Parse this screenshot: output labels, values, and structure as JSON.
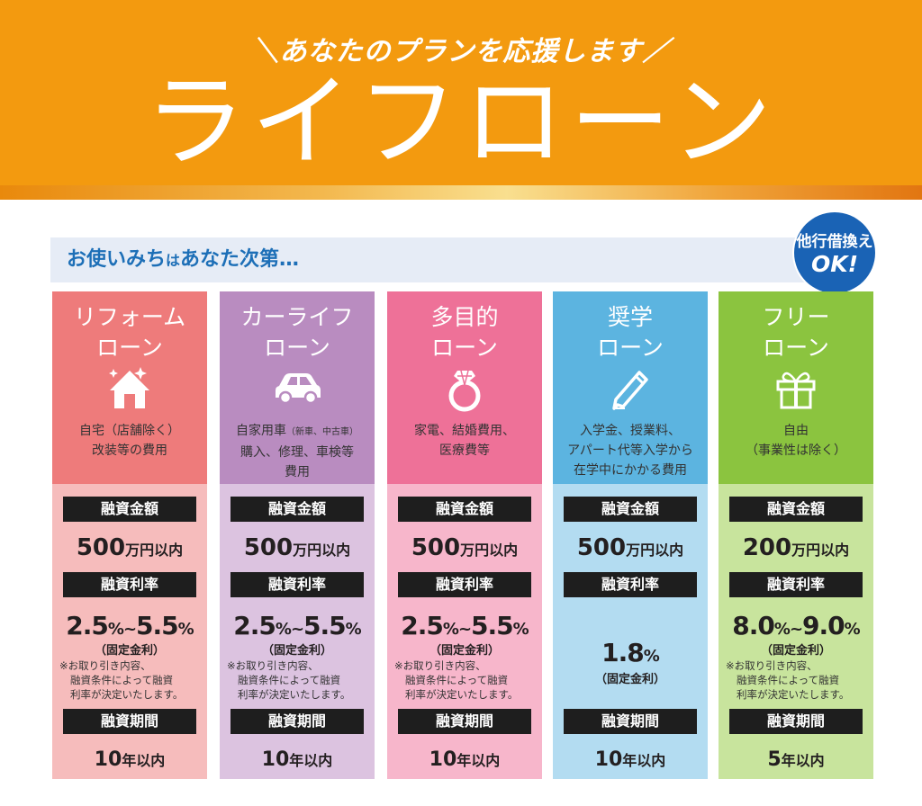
{
  "header": {
    "subtitle": "＼あなたのプランを応援します／",
    "title": "ライフローン"
  },
  "usage": {
    "text_part1": "お使いみち",
    "text_small": "は",
    "text_part2": "あなた次第…"
  },
  "badge": {
    "line1": "他行借換え",
    "line2": "OK!"
  },
  "labels": {
    "amount": "融資金額",
    "rate": "融資利率",
    "term": "融資期間"
  },
  "colors": {
    "header_orange": "#f39a0f",
    "reform": "#ee7b7b",
    "reform_light": "#f6bcbc",
    "carlife": "#b98cc0",
    "carlife_light": "#dcc3e0",
    "multi": "#ee7198",
    "multi_light": "#f7b6cb",
    "scholar": "#5cb4e0",
    "scholar_light": "#b3dcf1",
    "free": "#8bc43f",
    "free_light": "#c8e49d",
    "badge_blue": "#1a63b5"
  },
  "loans": [
    {
      "name1": "リフォーム",
      "name2": "ローン",
      "icon": "house-icon",
      "desc1": "自宅（店舗除く）",
      "desc2": "改装等の費用",
      "desc3": "",
      "amount": "500",
      "amount_unit": "万円以内",
      "rate_from": "2.5",
      "rate_to": "5.5",
      "rate_unit": "%",
      "rate_sep": "~",
      "rate_type": "（固定金利）",
      "note1": "※お取り引き内容、",
      "note2": "融資条件によって融資",
      "note3": "利率が決定いたします。",
      "term": "10",
      "term_unit": "年以内"
    },
    {
      "name1": "カーライフ",
      "name2": "ローン",
      "icon": "car-icon",
      "desc1": "自家用車",
      "desc1_small": "（新車、中古車）",
      "desc2": "購入、修理、車検等",
      "desc3": "費用",
      "amount": "500",
      "amount_unit": "万円以内",
      "rate_from": "2.5",
      "rate_to": "5.5",
      "rate_unit": "%",
      "rate_sep": "~",
      "rate_type": "（固定金利）",
      "note1": "※お取り引き内容、",
      "note2": "融資条件によって融資",
      "note3": "利率が決定いたします。",
      "term": "10",
      "term_unit": "年以内"
    },
    {
      "name1": "多目的",
      "name2": "ローン",
      "icon": "ring-icon",
      "desc1": "家電、結婚費用、",
      "desc2": "医療費等",
      "desc3": "",
      "amount": "500",
      "amount_unit": "万円以内",
      "rate_from": "2.5",
      "rate_to": "5.5",
      "rate_unit": "%",
      "rate_sep": "~",
      "rate_type": "（固定金利）",
      "note1": "※お取り引き内容、",
      "note2": "融資条件によって融資",
      "note3": "利率が決定いたします。",
      "term": "10",
      "term_unit": "年以内"
    },
    {
      "name1": "奨学",
      "name2": "ローン",
      "icon": "pencil-icon",
      "desc1": "入学金、授業料、",
      "desc2": "アパート代等入学から",
      "desc3": "在学中にかかる費用",
      "amount": "500",
      "amount_unit": "万円以内",
      "rate": "1.8",
      "rate_unit": "%",
      "rate_type": "（固定金利）",
      "term": "10",
      "term_unit": "年以内"
    },
    {
      "name1": "フリー",
      "name2": "ローン",
      "icon": "gift-icon",
      "desc1": "自由",
      "desc2": "（事業性は除く）",
      "desc3": "",
      "amount": "200",
      "amount_unit": "万円以内",
      "rate_from": "8.0",
      "rate_to": "9.0",
      "rate_unit": "%",
      "rate_sep": "~",
      "rate_type": "（固定金利）",
      "note1": "※お取り引き内容、",
      "note2": "融資条件によって融資",
      "note3": "利率が決定いたします。",
      "term": "5",
      "term_unit": "年以内"
    }
  ]
}
